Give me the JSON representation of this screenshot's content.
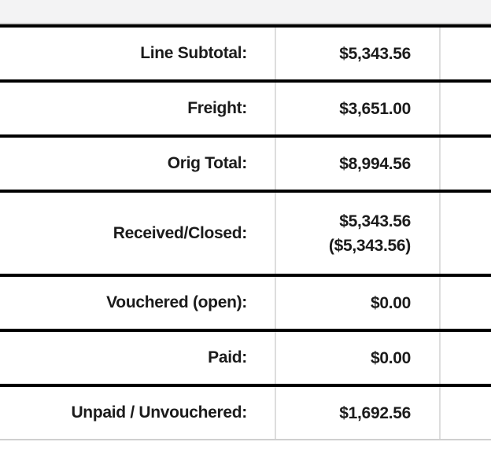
{
  "panel": {
    "name": "order-totals-summary"
  },
  "table": {
    "rows": [
      {
        "label": "Line Subtotal:",
        "value": "$5,343.56"
      },
      {
        "label": "Freight:",
        "value": "$3,651.00"
      },
      {
        "label": "Orig Total:",
        "value": "$8,994.56"
      },
      {
        "label": "Received/Closed:",
        "value": "$5,343.56",
        "value2": "($5,343.56)"
      },
      {
        "label": "Vouchered (open):",
        "value": "$0.00"
      },
      {
        "label": "Paid:",
        "value": "$0.00"
      },
      {
        "label": "Unpaid / Unvouchered:",
        "value": "$1,692.56"
      }
    ]
  },
  "colors": {
    "row_separator": "#000000",
    "column_separator": "#dddddd",
    "top_strip_background": "#f3f3f4",
    "top_strip_border": "#c8c8c8",
    "bottom_hairline": "#cfcfcf",
    "text": "#1b1b1b",
    "cell_background": "#ffffff"
  }
}
